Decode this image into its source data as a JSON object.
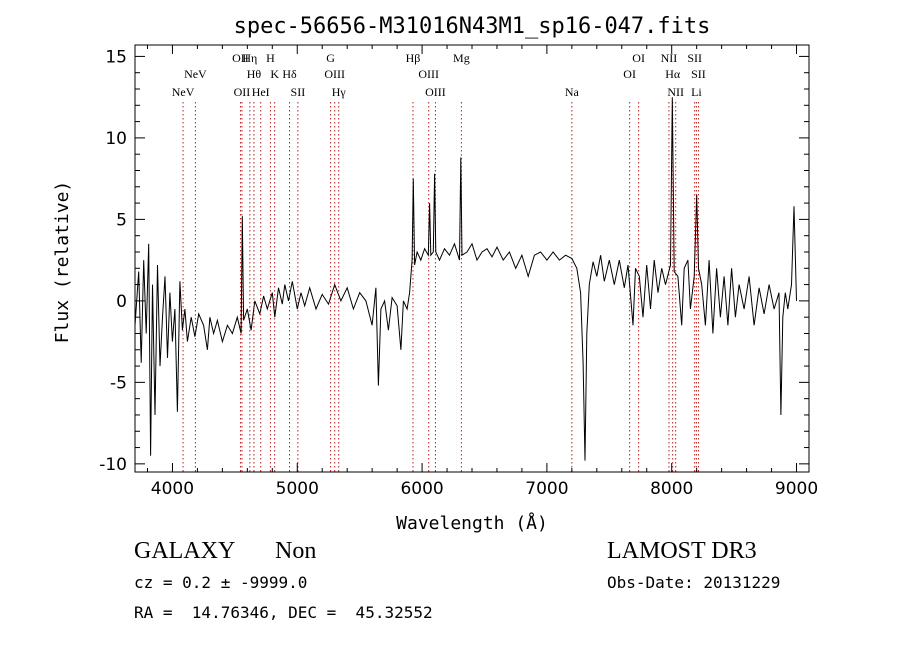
{
  "chart_data": {
    "type": "line",
    "title": "spec-56656-M31016N43M1_sp16-047.fits",
    "xlabel": "Wavelength (Å)",
    "ylabel": "Flux (relative)",
    "xlim": [
      3700,
      9100
    ],
    "ylim": [
      -10.5,
      15.7
    ],
    "xticks": [
      4000,
      5000,
      6000,
      7000,
      8000,
      9000
    ],
    "yticks": [
      -10,
      -5,
      0,
      5,
      10,
      15
    ],
    "line_color": "#000000",
    "marker_color": "#b22222",
    "series": [
      {
        "name": "spectrum",
        "points": [
          [
            3700,
            -1.5
          ],
          [
            3730,
            1.8
          ],
          [
            3750,
            -3.8
          ],
          [
            3770,
            2.5
          ],
          [
            3790,
            -2.0
          ],
          [
            3810,
            3.5
          ],
          [
            3825,
            -9.5
          ],
          [
            3840,
            1.0
          ],
          [
            3860,
            -7.0
          ],
          [
            3880,
            2.2
          ],
          [
            3900,
            -4.0
          ],
          [
            3920,
            -1.0
          ],
          [
            3940,
            1.5
          ],
          [
            3960,
            -3.5
          ],
          [
            3980,
            0.5
          ],
          [
            4000,
            -2.5
          ],
          [
            4020,
            -0.5
          ],
          [
            4040,
            -6.8
          ],
          [
            4060,
            1.2
          ],
          [
            4080,
            -1.8
          ],
          [
            4100,
            -0.5
          ],
          [
            4120,
            -2.5
          ],
          [
            4150,
            -1.0
          ],
          [
            4180,
            -2.2
          ],
          [
            4210,
            -0.8
          ],
          [
            4250,
            -1.5
          ],
          [
            4280,
            -3.0
          ],
          [
            4300,
            -1.0
          ],
          [
            4330,
            -2.0
          ],
          [
            4360,
            -1.2
          ],
          [
            4400,
            -2.5
          ],
          [
            4440,
            -1.5
          ],
          [
            4480,
            -2.0
          ],
          [
            4520,
            -1.0
          ],
          [
            4550,
            -2.0
          ],
          [
            4560,
            5.2
          ],
          [
            4570,
            -1.2
          ],
          [
            4600,
            -0.5
          ],
          [
            4630,
            -1.8
          ],
          [
            4660,
            0.0
          ],
          [
            4700,
            -0.8
          ],
          [
            4730,
            0.3
          ],
          [
            4760,
            -0.5
          ],
          [
            4800,
            0.5
          ],
          [
            4820,
            -1.0
          ],
          [
            4850,
            0.8
          ],
          [
            4880,
            -0.2
          ],
          [
            4900,
            1.0
          ],
          [
            4930,
            0.0
          ],
          [
            4960,
            1.2
          ],
          [
            5000,
            -0.5
          ],
          [
            5030,
            0.5
          ],
          [
            5060,
            -0.3
          ],
          [
            5100,
            0.8
          ],
          [
            5150,
            -0.5
          ],
          [
            5200,
            0.4
          ],
          [
            5250,
            -0.2
          ],
          [
            5300,
            1.0
          ],
          [
            5350,
            0.0
          ],
          [
            5400,
            0.8
          ],
          [
            5450,
            -0.5
          ],
          [
            5500,
            0.5
          ],
          [
            5550,
            0.0
          ],
          [
            5600,
            -1.5
          ],
          [
            5630,
            0.8
          ],
          [
            5650,
            -5.2
          ],
          [
            5670,
            -0.5
          ],
          [
            5700,
            0.0
          ],
          [
            5730,
            -1.8
          ],
          [
            5760,
            0.2
          ],
          [
            5800,
            -0.3
          ],
          [
            5830,
            -3.0
          ],
          [
            5850,
            0.0
          ],
          [
            5880,
            -0.5
          ],
          [
            5900,
            0.5
          ],
          [
            5920,
            2.5
          ],
          [
            5930,
            7.5
          ],
          [
            5940,
            2.2
          ],
          [
            5960,
            3.0
          ],
          [
            5990,
            2.5
          ],
          [
            6020,
            3.2
          ],
          [
            6050,
            2.8
          ],
          [
            6060,
            6.0
          ],
          [
            6070,
            2.8
          ],
          [
            6090,
            3.0
          ],
          [
            6100,
            7.8
          ],
          [
            6110,
            3.0
          ],
          [
            6140,
            2.5
          ],
          [
            6180,
            3.2
          ],
          [
            6220,
            2.8
          ],
          [
            6260,
            3.5
          ],
          [
            6300,
            2.5
          ],
          [
            6310,
            8.8
          ],
          [
            6320,
            2.8
          ],
          [
            6360,
            3.0
          ],
          [
            6400,
            3.5
          ],
          [
            6440,
            2.5
          ],
          [
            6480,
            3.0
          ],
          [
            6520,
            3.2
          ],
          [
            6560,
            2.7
          ],
          [
            6600,
            3.3
          ],
          [
            6650,
            2.5
          ],
          [
            6700,
            3.0
          ],
          [
            6750,
            2.0
          ],
          [
            6800,
            2.8
          ],
          [
            6850,
            1.5
          ],
          [
            6900,
            2.8
          ],
          [
            6950,
            3.0
          ],
          [
            7000,
            2.5
          ],
          [
            7050,
            3.0
          ],
          [
            7100,
            2.5
          ],
          [
            7150,
            2.8
          ],
          [
            7200,
            2.6
          ],
          [
            7240,
            2.0
          ],
          [
            7270,
            0.5
          ],
          [
            7290,
            -3.8
          ],
          [
            7305,
            -9.8
          ],
          [
            7320,
            -2.0
          ],
          [
            7340,
            1.0
          ],
          [
            7370,
            2.4
          ],
          [
            7400,
            1.5
          ],
          [
            7430,
            2.8
          ],
          [
            7460,
            1.2
          ],
          [
            7500,
            2.5
          ],
          [
            7540,
            1.0
          ],
          [
            7580,
            2.5
          ],
          [
            7620,
            0.8
          ],
          [
            7650,
            2.2
          ],
          [
            7690,
            -1.5
          ],
          [
            7710,
            2.0
          ],
          [
            7740,
            1.5
          ],
          [
            7770,
            -1.0
          ],
          [
            7800,
            2.2
          ],
          [
            7830,
            -0.5
          ],
          [
            7860,
            2.5
          ],
          [
            7890,
            0.5
          ],
          [
            7920,
            2.0
          ],
          [
            7950,
            1.0
          ],
          [
            7990,
            2.2
          ],
          [
            8005,
            12.5
          ],
          [
            8020,
            1.8
          ],
          [
            8050,
            1.5
          ],
          [
            8080,
            -1.5
          ],
          [
            8100,
            2.0
          ],
          [
            8130,
            2.5
          ],
          [
            8150,
            -0.5
          ],
          [
            8180,
            1.5
          ],
          [
            8200,
            6.5
          ],
          [
            8215,
            2.0
          ],
          [
            8240,
            1.0
          ],
          [
            8270,
            -1.5
          ],
          [
            8300,
            2.5
          ],
          [
            8330,
            -2.0
          ],
          [
            8360,
            2.0
          ],
          [
            8390,
            -1.0
          ],
          [
            8420,
            1.5
          ],
          [
            8450,
            -1.5
          ],
          [
            8480,
            2.0
          ],
          [
            8510,
            -1.0
          ],
          [
            8540,
            1.0
          ],
          [
            8580,
            -0.5
          ],
          [
            8620,
            1.5
          ],
          [
            8660,
            -1.5
          ],
          [
            8700,
            0.8
          ],
          [
            8740,
            -0.8
          ],
          [
            8780,
            1.0
          ],
          [
            8820,
            -0.5
          ],
          [
            8860,
            0.5
          ],
          [
            8875,
            -7.0
          ],
          [
            8890,
            -1.0
          ],
          [
            8910,
            0.5
          ],
          [
            8930,
            -0.5
          ],
          [
            8960,
            1.0
          ],
          [
            8980,
            5.8
          ],
          [
            9000,
            0.0
          ]
        ]
      }
    ],
    "emission_lines": [
      {
        "name": "NeV",
        "wavelength": 4085,
        "label": "NeV",
        "row": 3
      },
      {
        "name": "NeV",
        "wavelength": 4184,
        "label": "NeV",
        "row": 2
      },
      {
        "name": "OII",
        "wavelength": 4545,
        "label": "OII",
        "row": 1
      },
      {
        "name": "OII",
        "wavelength": 4557,
        "label": "OII",
        "row": 3
      },
      {
        "name": "Hη",
        "wavelength": 4620,
        "label": "Hη",
        "row": 1
      },
      {
        "name": "Hθ",
        "wavelength": 4653,
        "label": "Hθ",
        "row": 2
      },
      {
        "name": "HeI",
        "wavelength": 4707,
        "label": "HeI",
        "row": 3
      },
      {
        "name": "H",
        "wavelength": 4785,
        "label": "H",
        "row": 1
      },
      {
        "name": "K",
        "wavelength": 4819,
        "label": "K",
        "row": 2
      },
      {
        "name": "Hδ",
        "wavelength": 4938,
        "label": "Hδ",
        "row": 2
      },
      {
        "name": "SII",
        "wavelength": 5005,
        "label": "SII",
        "row": 3
      },
      {
        "name": "G",
        "wavelength": 5267,
        "label": "G",
        "row": 1
      },
      {
        "name": "OIII",
        "wavelength": 5300,
        "label": "OIII",
        "row": 2
      },
      {
        "name": "Hγ",
        "wavelength": 5332,
        "label": "Hγ",
        "row": 3
      },
      {
        "name": "Hβ",
        "wavelength": 5927,
        "label": "Hβ",
        "row": 1
      },
      {
        "name": "OIII",
        "wavelength": 6053,
        "label": "OIII",
        "row": 2
      },
      {
        "name": "OIII",
        "wavelength": 6107,
        "label": "OIII",
        "row": 3
      },
      {
        "name": "Mg",
        "wavelength": 6315,
        "label": "Mg",
        "row": 1
      },
      {
        "name": "Na",
        "wavelength": 7200,
        "label": "Na",
        "row": 3
      },
      {
        "name": "OI",
        "wavelength": 7663,
        "label": "OI",
        "row": 2
      },
      {
        "name": "OI",
        "wavelength": 7735,
        "label": "OI",
        "row": 1
      },
      {
        "name": "NII",
        "wavelength": 7978,
        "label": "NII",
        "row": 1
      },
      {
        "name": "Hα",
        "wavelength": 8008,
        "label": "Hα",
        "row": 2
      },
      {
        "name": "NII",
        "wavelength": 8032,
        "label": "NII",
        "row": 3
      },
      {
        "name": "SII",
        "wavelength": 8184,
        "label": "SII",
        "row": 1
      },
      {
        "name": "SII",
        "wavelength": 8214,
        "label": "SII",
        "row": 2
      },
      {
        "name": "Li",
        "wavelength": 8198,
        "label": "Li",
        "row": 3
      }
    ]
  },
  "info": {
    "classification": "GALAXY",
    "subclass": "Non",
    "survey": "LAMOST DR3",
    "cz_line": "cz = 0.2 ± -9999.0",
    "obs_date": "Obs-Date: 20131229",
    "coords_line": "RA =  14.76346, DEC =  45.32552"
  }
}
